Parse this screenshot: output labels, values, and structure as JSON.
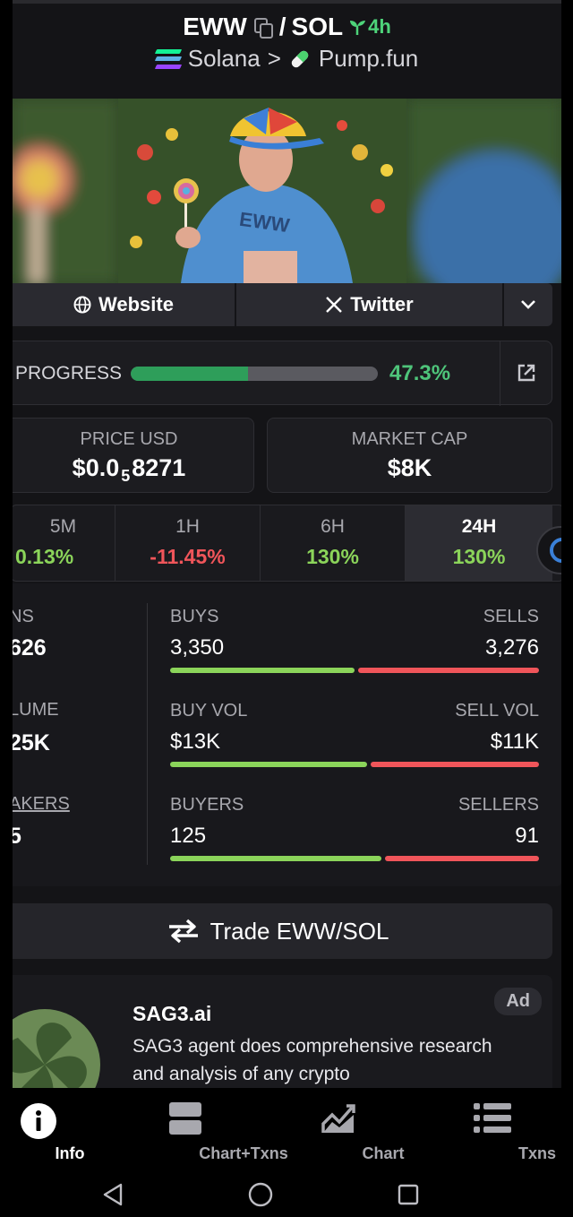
{
  "header": {
    "base_symbol": "EWW",
    "separator": "/",
    "quote_symbol": "SOL",
    "age": "4h",
    "chain": "Solana",
    "crumb_sep": ">",
    "dex": "Pump.fun"
  },
  "links": {
    "website": "Website",
    "twitter": "Twitter"
  },
  "progress": {
    "label": "PROGRESS",
    "value_text": "47.3%",
    "value": 47.3
  },
  "stats": {
    "price_label": "PRICE USD",
    "price_prefix": "$0.0",
    "price_sub": "5",
    "price_suffix": "8271",
    "mcap_label": "MARKET CAP",
    "mcap_value": "$8K"
  },
  "timeframes": [
    {
      "label": "5M",
      "value": "0.13%",
      "color": "#8bd45a"
    },
    {
      "label": "1H",
      "value": "-11.45%",
      "color": "#f0555a"
    },
    {
      "label": "6H",
      "value": "130%",
      "color": "#8bd45a"
    },
    {
      "label": "24H",
      "value": "130%",
      "color": "#8bd45a"
    }
  ],
  "txns": {
    "left": [
      {
        "label": "NS",
        "value": "626"
      },
      {
        "label": "LUME",
        "value": "25K"
      },
      {
        "label": "AKERS",
        "value": "5"
      }
    ],
    "rows": [
      {
        "left_label": "BUYS",
        "right_label": "SELLS",
        "left_value": "3,350",
        "right_value": "3,276",
        "buy_ratio": 0.506
      },
      {
        "left_label": "BUY VOL",
        "right_label": "SELL VOL",
        "left_value": "$13K",
        "right_value": "$11K",
        "buy_ratio": 0.54
      },
      {
        "left_label": "BUYERS",
        "right_label": "SELLERS",
        "left_value": "125",
        "right_value": "91",
        "buy_ratio": 0.579
      }
    ]
  },
  "trade_button": "Trade EWW/SOL",
  "ad": {
    "badge": "Ad",
    "title": "SAG3.ai",
    "text": "SAG3 agent does comprehensive research and analysis of any crypto"
  },
  "nav": [
    {
      "label": "Info",
      "icon": "info-icon"
    },
    {
      "label": "Chart+Txns",
      "icon": "chart-txns-icon"
    },
    {
      "label": "Chart",
      "icon": "chart-icon"
    },
    {
      "label": "Txns",
      "icon": "list-icon"
    }
  ],
  "colors": {
    "green": "#8bd45a",
    "red": "#f0555a",
    "accent_green": "#4ec47a"
  }
}
